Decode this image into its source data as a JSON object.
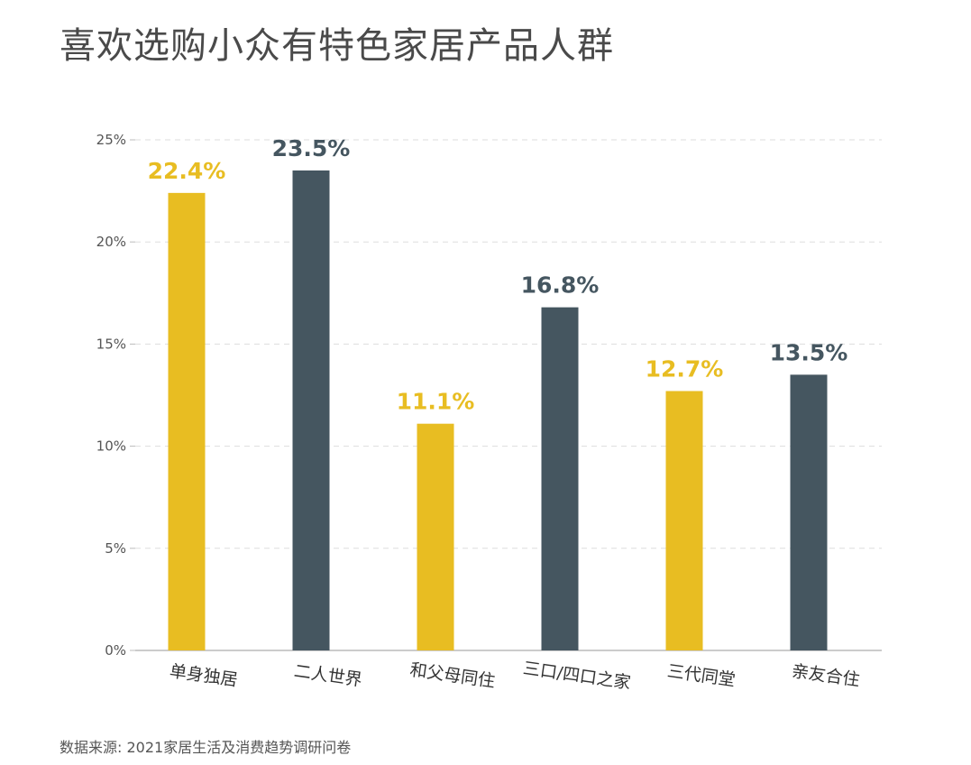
{
  "title": "喜欢选购小众有特色家居产品人群",
  "source": "数据来源: 2021家居生活及消费趋势调研问卷",
  "colors": {
    "yellow": "#E8BD22",
    "slate": "#455660",
    "grid": "#dddddd",
    "axis": "#bbbbbb"
  },
  "chart_data": {
    "type": "bar",
    "title": "喜欢选购小众有特色家居产品人群",
    "xlabel": "",
    "ylabel": "",
    "ylim": [
      0,
      25
    ],
    "y_ticks": [
      {
        "value": 0,
        "label": "0%"
      },
      {
        "value": 5,
        "label": "5%"
      },
      {
        "value": 10,
        "label": "10%"
      },
      {
        "value": 15,
        "label": "15%"
      },
      {
        "value": 20,
        "label": "20%"
      },
      {
        "value": 25,
        "label": "25%"
      }
    ],
    "grid": true,
    "categories": [
      "单身独居",
      "二人世界",
      "和父母同住",
      "三口/四口之家",
      "三代同堂",
      "亲友合住"
    ],
    "values": [
      22.4,
      23.5,
      11.1,
      16.8,
      12.7,
      13.5
    ],
    "value_labels": [
      "22.4%",
      "23.5%",
      "11.1%",
      "16.8%",
      "12.7%",
      "13.5%"
    ],
    "bar_colors": [
      "#E8BD22",
      "#455660",
      "#E8BD22",
      "#455660",
      "#E8BD22",
      "#455660"
    ]
  }
}
